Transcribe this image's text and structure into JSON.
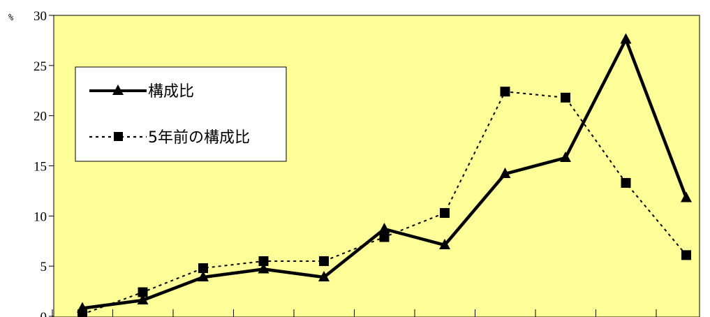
{
  "chart_data": {
    "type": "line",
    "title": "",
    "xlabel": "",
    "ylabel": "",
    "y_unit": "%",
    "ylim": [
      0,
      30
    ],
    "yticks": [
      0,
      5,
      10,
      15,
      20,
      25,
      30
    ],
    "grid": false,
    "legend_position": "top-left",
    "plot_background": "#FFFF99",
    "line_color": "#000000",
    "x": [
      1,
      2,
      3,
      4,
      5,
      6,
      7,
      8,
      9,
      10,
      11
    ],
    "series": [
      {
        "name": "構成比",
        "style": "solid",
        "marker": "triangle",
        "values": [
          0.8,
          1.6,
          3.9,
          4.7,
          3.9,
          8.7,
          7.1,
          14.2,
          15.8,
          27.6,
          11.8
        ]
      },
      {
        "name": "5年前の構成比",
        "style": "dotted",
        "marker": "square",
        "values": [
          0.2,
          2.4,
          4.8,
          5.5,
          5.5,
          7.9,
          10.3,
          22.4,
          21.8,
          13.3,
          6.1
        ]
      }
    ]
  }
}
